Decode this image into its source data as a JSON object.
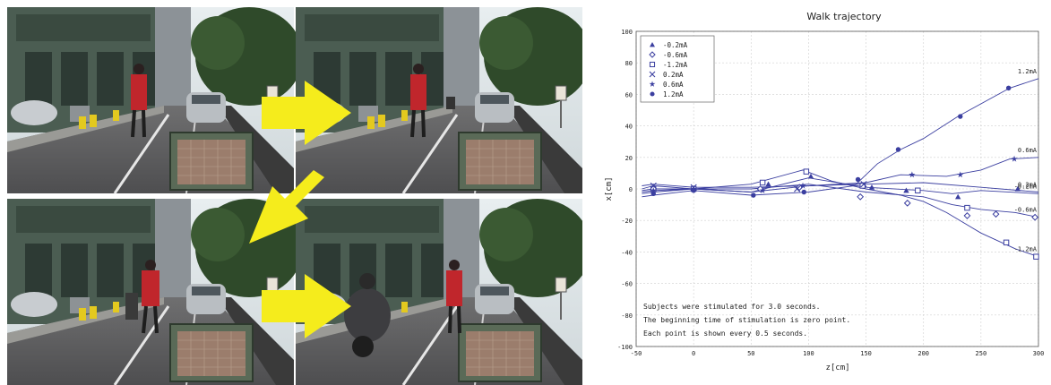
{
  "chart_data": {
    "type": "line",
    "title": "Walk trajectory",
    "xlabel": "z[cm]",
    "ylabel": "x[cm]",
    "xlim": [
      -50,
      300
    ],
    "ylim": [
      -100,
      100
    ],
    "xticks": [
      -50,
      0,
      50,
      100,
      150,
      200,
      250,
      300
    ],
    "yticks": [
      -100,
      -80,
      -60,
      -40,
      -20,
      0,
      20,
      40,
      60,
      80,
      100
    ],
    "grid": true,
    "legend_position": "top-left",
    "series": [
      {
        "name": "-0.2mA",
        "marker": "triangle",
        "end_label": "-0.2mA",
        "points": [
          [
            -45,
            0
          ],
          [
            -35,
            2
          ],
          [
            0,
            0
          ],
          [
            50,
            -2
          ],
          [
            100,
            7
          ],
          [
            150,
            1
          ],
          [
            200,
            -1
          ],
          [
            225,
            -3
          ],
          [
            250,
            -1
          ],
          [
            300,
            -3
          ]
        ],
        "markers": [
          [
            -35,
            1
          ],
          [
            0,
            0
          ],
          [
            65,
            3
          ],
          [
            102,
            8
          ],
          [
            155,
            1
          ],
          [
            185,
            -1
          ],
          [
            230,
            -5
          ],
          [
            282,
            0
          ]
        ]
      },
      {
        "name": "-0.6mA",
        "marker": "diamond",
        "end_label": "-0.6mA",
        "points": [
          [
            -45,
            -1
          ],
          [
            -35,
            0
          ],
          [
            0,
            0
          ],
          [
            50,
            0
          ],
          [
            100,
            3
          ],
          [
            150,
            -2
          ],
          [
            200,
            -5
          ],
          [
            225,
            -10
          ],
          [
            250,
            -13
          ],
          [
            280,
            -15
          ],
          [
            300,
            -18
          ]
        ],
        "markers": [
          [
            -35,
            -1
          ],
          [
            0,
            0
          ],
          [
            58,
            0
          ],
          [
            92,
            1
          ],
          [
            145,
            -5
          ],
          [
            186,
            -9
          ],
          [
            238,
            -17
          ],
          [
            263,
            -16
          ],
          [
            297,
            -18
          ]
        ]
      },
      {
        "name": "-1.2mA",
        "marker": "square",
        "end_label": "-1.2mA",
        "points": [
          [
            -45,
            -2
          ],
          [
            -35,
            -1
          ],
          [
            0,
            0
          ],
          [
            50,
            3
          ],
          [
            95,
            12
          ],
          [
            120,
            5
          ],
          [
            150,
            0
          ],
          [
            180,
            -4
          ],
          [
            200,
            -8
          ],
          [
            220,
            -15
          ],
          [
            250,
            -28
          ],
          [
            280,
            -38
          ],
          [
            300,
            -43
          ]
        ],
        "markers": [
          [
            -35,
            0
          ],
          [
            0,
            0
          ],
          [
            60,
            4
          ],
          [
            98,
            11
          ],
          [
            147,
            2
          ],
          [
            195,
            -1
          ],
          [
            238,
            -12
          ],
          [
            272,
            -34
          ],
          [
            298,
            -43
          ]
        ]
      },
      {
        "name": "0.2mA",
        "marker": "x",
        "end_label": "0.2mA",
        "points": [
          [
            -45,
            2
          ],
          [
            -35,
            3
          ],
          [
            0,
            1
          ],
          [
            50,
            1
          ],
          [
            100,
            2
          ],
          [
            150,
            3
          ],
          [
            200,
            4
          ],
          [
            250,
            1
          ],
          [
            300,
            -2
          ]
        ],
        "markers": [
          [
            -35,
            2
          ],
          [
            0,
            1
          ],
          [
            90,
            0
          ],
          [
            148,
            3
          ]
        ]
      },
      {
        "name": "0.6mA",
        "marker": "star",
        "end_label": "0.6mA",
        "points": [
          [
            -45,
            -3
          ],
          [
            -35,
            -2
          ],
          [
            0,
            0
          ],
          [
            50,
            -2
          ],
          [
            100,
            2
          ],
          [
            150,
            4
          ],
          [
            180,
            9
          ],
          [
            220,
            8
          ],
          [
            250,
            12
          ],
          [
            275,
            19
          ],
          [
            300,
            20
          ]
        ],
        "markers": [
          [
            -35,
            -1
          ],
          [
            0,
            0
          ],
          [
            60,
            -1
          ],
          [
            95,
            2
          ],
          [
            190,
            9
          ],
          [
            232,
            9
          ],
          [
            279,
            19
          ]
        ]
      },
      {
        "name": "1.2mA",
        "marker": "dot",
        "end_label": "1.2mA",
        "points": [
          [
            -45,
            -5
          ],
          [
            -35,
            -4
          ],
          [
            0,
            -1
          ],
          [
            50,
            -4
          ],
          [
            100,
            -2
          ],
          [
            140,
            2
          ],
          [
            160,
            16
          ],
          [
            180,
            25
          ],
          [
            200,
            32
          ],
          [
            230,
            46
          ],
          [
            260,
            58
          ],
          [
            275,
            64
          ],
          [
            300,
            70
          ]
        ],
        "markers": [
          [
            -35,
            -3
          ],
          [
            0,
            -1
          ],
          [
            52,
            -4
          ],
          [
            96,
            -2
          ],
          [
            143,
            6
          ],
          [
            178,
            25
          ],
          [
            232,
            46
          ],
          [
            274,
            64
          ]
        ]
      }
    ],
    "annotations": [
      "Subjects were stimulated for 3.0 seconds.",
      "The beginning time of stimulation is zero point.",
      "Each point is shown every 0.5 seconds."
    ]
  },
  "photo_panel": {
    "description_icons": [
      "arrow-right-icon",
      "arrow-down-left-icon",
      "arrow-right-icon"
    ]
  },
  "colors": {
    "line": "#3b3fa0",
    "arrow": "#f5ec1c",
    "grid": "#d0d0d0"
  }
}
